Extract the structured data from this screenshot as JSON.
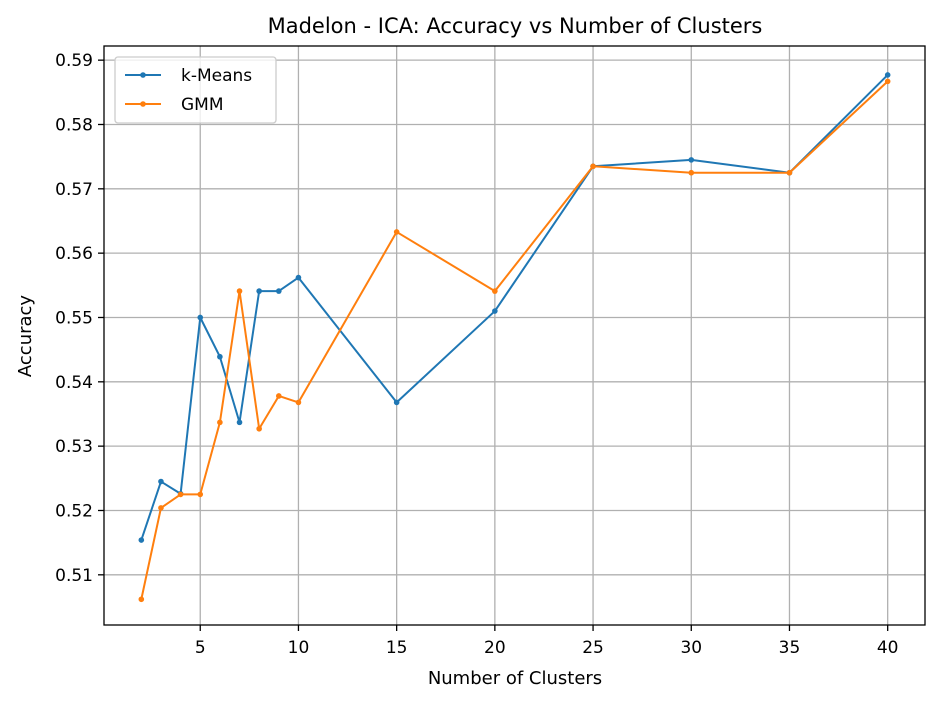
{
  "chart_data": {
    "type": "line",
    "title": "Madelon - ICA: Accuracy vs Number of Clusters",
    "xlabel": "Number of Clusters",
    "ylabel": "Accuracy",
    "x": [
      2,
      3,
      4,
      5,
      6,
      7,
      8,
      9,
      10,
      15,
      20,
      25,
      30,
      35,
      40
    ],
    "xlim": [
      0.1,
      41.9
    ],
    "ylim": [
      0.5022,
      0.5922
    ],
    "xticks": [
      5,
      10,
      15,
      20,
      25,
      30,
      35,
      40
    ],
    "xtick_labels": [
      "5",
      "10",
      "15",
      "20",
      "25",
      "30",
      "35",
      "40"
    ],
    "yticks": [
      0.51,
      0.52,
      0.53,
      0.54,
      0.55,
      0.56,
      0.57,
      0.58,
      0.59
    ],
    "ytick_labels": [
      "0.51",
      "0.52",
      "0.53",
      "0.54",
      "0.55",
      "0.56",
      "0.57",
      "0.58",
      "0.59"
    ],
    "grid": true,
    "legend_position": "top-left",
    "series": [
      {
        "name": "k-Means",
        "color": "#1f77b4",
        "values": [
          0.5154,
          0.5245,
          0.5226,
          0.55,
          0.5439,
          0.5337,
          0.5541,
          0.5541,
          0.5562,
          0.5368,
          0.551,
          0.5735,
          0.5745,
          0.5725,
          0.5877
        ]
      },
      {
        "name": "GMM",
        "color": "#ff7f0e",
        "values": [
          0.5062,
          0.5204,
          0.5225,
          0.5225,
          0.5337,
          0.5541,
          0.5327,
          0.5378,
          0.5368,
          0.5633,
          0.5541,
          0.5735,
          0.5725,
          0.5725,
          0.5867
        ]
      }
    ]
  }
}
